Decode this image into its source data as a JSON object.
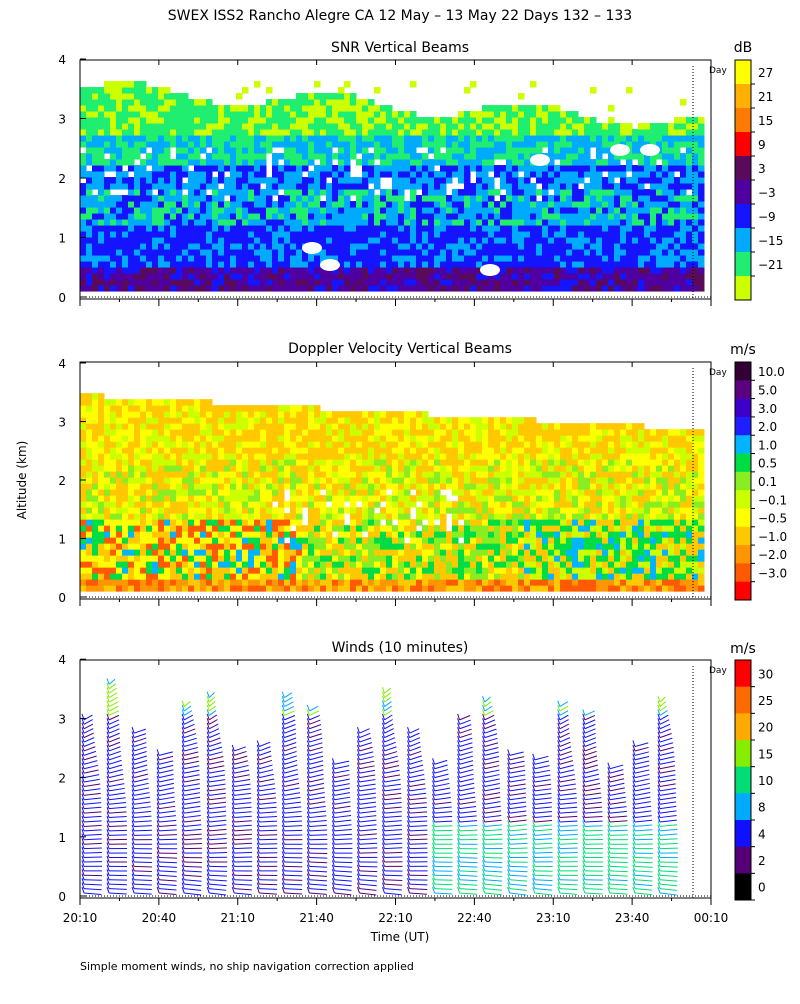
{
  "title": "SWEX ISS2 Rancho Alegre CA  12 May – 13 May 22 Days 132 – 133",
  "footnote": "Simple moment winds, no ship navigation correction applied",
  "day_marker_label": "Day",
  "chart_data": [
    {
      "type": "heatmap",
      "title": "SNR Vertical Beams",
      "ylabel": "",
      "xlabel": "",
      "ylim": [
        0,
        4
      ],
      "yticks": [
        "0",
        "1",
        "2",
        "3",
        "4"
      ],
      "colorbar": {
        "unit": "dB",
        "labels": [
          "27",
          "21",
          "15",
          "9",
          "3",
          "−3",
          "−9",
          "−15",
          "−21"
        ],
        "colors": [
          "#ffff00",
          "#ffb000",
          "#ff7a00",
          "#ff0000",
          "#5a0a5a",
          "#5000a0",
          "#1414ff",
          "#00aaff",
          "#20ee70",
          "#ccff00"
        ]
      }
    },
    {
      "type": "heatmap",
      "title": "Doppler Velocity Vertical Beams",
      "ylabel": "Altitude (km)",
      "xlabel": "",
      "ylim": [
        0,
        4
      ],
      "yticks": [
        "0",
        "1",
        "2",
        "3",
        "4"
      ],
      "colorbar": {
        "unit": "m/s",
        "labels": [
          "10.0",
          "5.0",
          "3.0",
          "2.0",
          "1.0",
          "0.5",
          "0.1",
          "−0.1",
          "−0.5",
          "−1.0",
          "−2.0",
          "−3.0"
        ],
        "colors": [
          "#330033",
          "#5a0080",
          "#3c00c8",
          "#1e1eff",
          "#00b4ff",
          "#00dd44",
          "#88ee22",
          "#ccff00",
          "#ffff00",
          "#ffc800",
          "#ff9600",
          "#ff5a00",
          "#ff0000"
        ]
      }
    },
    {
      "type": "scatter",
      "title": "Winds (10 minutes)",
      "ylabel": "",
      "xlabel": "Time (UT)",
      "ylim": [
        0,
        4
      ],
      "yticks": [
        "0",
        "1",
        "2",
        "3",
        "4"
      ],
      "xticks": [
        "20:10",
        "20:40",
        "21:10",
        "21:40",
        "22:10",
        "22:40",
        "23:10",
        "23:40",
        "00:10"
      ],
      "colorbar": {
        "unit": "m/s",
        "labels": [
          "30",
          "25",
          "20",
          "15",
          "10",
          "8",
          "4",
          "2",
          "0"
        ],
        "colors": [
          "#ff0000",
          "#ff6a00",
          "#ffaa00",
          "#88ee00",
          "#00dd77",
          "#00aaff",
          "#1010ff",
          "#550077",
          "#000000"
        ]
      }
    }
  ]
}
